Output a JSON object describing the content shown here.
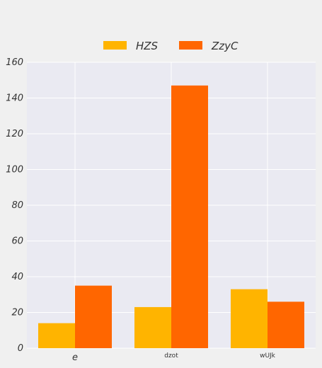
{
  "chart_data": {
    "type": "bar",
    "categories": [
      "e",
      "dzot",
      "wUJk"
    ],
    "series": [
      {
        "name": "HZS",
        "values": [
          14,
          23,
          33
        ],
        "color": "#ffb400"
      },
      {
        "name": "ZzyC",
        "values": [
          35,
          147,
          26
        ],
        "color": "#ff6600"
      }
    ],
    "ylim": [
      0,
      160
    ],
    "yticks": [
      0,
      20,
      40,
      60,
      80,
      100,
      120,
      140,
      160
    ],
    "grid": true,
    "legend": "top-center",
    "background": "#eaeaf2",
    "page_background": "#f0f0f0"
  }
}
